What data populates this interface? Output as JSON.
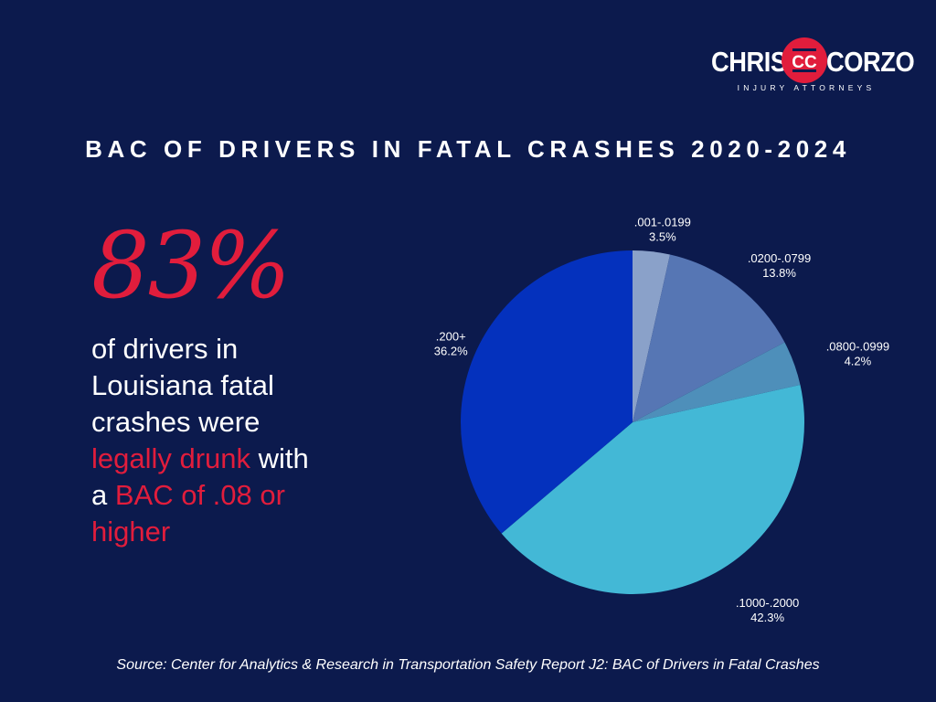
{
  "logo": {
    "left_word": "CHRIS",
    "monogram": "CC",
    "right_word": "CORZO",
    "tagline": "INJURY ATTORNEYS"
  },
  "headline": {
    "percent": "83%",
    "lead": " of drivers in Louisiana fatal crashes were ",
    "highlight_1": "legally drunk",
    "mid": " with a ",
    "highlight_2": "BAC of .08 or higher"
  },
  "chart_data": {
    "type": "pie",
    "title": "BAC OF DRIVERS IN FATAL CRASHES 2020-2024",
    "slices": [
      {
        "label": ".001-.0199",
        "value": 3.5,
        "value_label": "3.5%",
        "color": "#8aa1c9"
      },
      {
        "label": ".0200-.0799",
        "value": 13.8,
        "value_label": "13.8%",
        "color": "#5676b4"
      },
      {
        "label": ".0800-.0999",
        "value": 4.2,
        "value_label": "4.2%",
        "color": "#4e8fba"
      },
      {
        "label": ".1000-.2000",
        "value": 42.3,
        "value_label": "42.3%",
        "color": "#43b8d6"
      },
      {
        "label": ".200+",
        "value": 36.2,
        "value_label": "36.2%",
        "color": "#0431bd"
      }
    ],
    "start_angle": "12 o'clock",
    "direction": "clockwise",
    "legend": "none"
  },
  "source": "Source: Center for Analytics & Research in Transportation Safety Report J2: BAC of Drivers in Fatal Crashes",
  "colors": {
    "background": "#0c1a4d",
    "accent_red": "#e11d3c",
    "text": "#ffffff"
  }
}
